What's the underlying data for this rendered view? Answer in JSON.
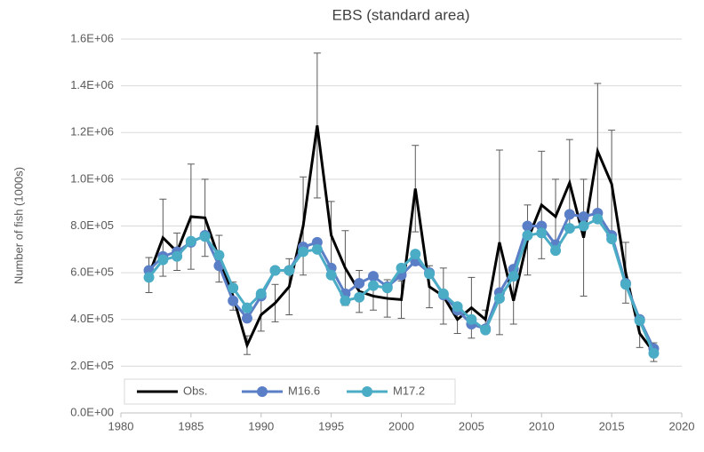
{
  "chart_data": {
    "type": "line",
    "title": "EBS (standard area)",
    "y_label": "Number of fish (1000s)",
    "x": [
      1982,
      1983,
      1984,
      1985,
      1986,
      1987,
      1988,
      1989,
      1990,
      1991,
      1992,
      1993,
      1994,
      1995,
      1996,
      1997,
      1998,
      1999,
      2000,
      2001,
      2002,
      2003,
      2004,
      2005,
      2006,
      2007,
      2008,
      2009,
      2010,
      2011,
      2012,
      2013,
      2014,
      2015,
      2016,
      2017,
      2018
    ],
    "series": [
      {
        "name": "Obs.",
        "color": "#000000",
        "markers": false,
        "values": [
          590000,
          750000,
          690000,
          840000,
          835000,
          660000,
          500000,
          290000,
          420000,
          470000,
          540000,
          800000,
          1230000,
          760000,
          620000,
          520000,
          500000,
          490000,
          485000,
          960000,
          540000,
          500000,
          400000,
          450000,
          400000,
          730000,
          480000,
          740000,
          890000,
          840000,
          985000,
          750000,
          1120000,
          980000,
          600000,
          340000,
          260000
        ],
        "errors": [
          75000,
          165000,
          80000,
          225000,
          165000,
          100000,
          60000,
          40000,
          70000,
          80000,
          120000,
          210000,
          310000,
          145000,
          160000,
          90000,
          60000,
          80000,
          80000,
          185000,
          90000,
          120000,
          60000,
          130000,
          40000,
          395000,
          100000,
          150000,
          230000,
          160000,
          185000,
          250000,
          290000,
          230000,
          130000,
          60000,
          40000
        ]
      },
      {
        "name": "M16.6",
        "color": "#5b7fc7",
        "markers": true,
        "values": [
          610000,
          670000,
          690000,
          730000,
          760000,
          630000,
          480000,
          405000,
          500000,
          610000,
          610000,
          710000,
          730000,
          620000,
          510000,
          555000,
          585000,
          540000,
          590000,
          650000,
          600000,
          505000,
          440000,
          380000,
          360000,
          515000,
          615000,
          800000,
          800000,
          720000,
          850000,
          840000,
          855000,
          760000,
          555000,
          400000,
          275000
        ]
      },
      {
        "name": "M17.2",
        "color": "#4bacc6",
        "markers": true,
        "values": [
          580000,
          655000,
          670000,
          735000,
          755000,
          675000,
          535000,
          450000,
          510000,
          610000,
          610000,
          690000,
          700000,
          590000,
          480000,
          495000,
          545000,
          535000,
          620000,
          680000,
          595000,
          510000,
          455000,
          400000,
          355000,
          490000,
          585000,
          760000,
          770000,
          695000,
          790000,
          800000,
          830000,
          745000,
          550000,
          395000,
          255000
        ]
      }
    ],
    "xlim": [
      1980,
      2020
    ],
    "xticks": [
      1980,
      1985,
      1990,
      1995,
      2000,
      2005,
      2010,
      2015,
      2020
    ],
    "ylim": [
      0,
      1600000
    ],
    "yticks": [
      {
        "value": 0,
        "label": "0.0E+00"
      },
      {
        "value": 200000,
        "label": "2.0E+05"
      },
      {
        "value": 400000,
        "label": "4.0E+05"
      },
      {
        "value": 600000,
        "label": "6.0E+05"
      },
      {
        "value": 800000,
        "label": "8.0E+05"
      },
      {
        "value": 1000000,
        "label": "1.0E+06"
      },
      {
        "value": 1200000,
        "label": "1.2E+06"
      },
      {
        "value": 1400000,
        "label": "1.4E+06"
      },
      {
        "value": 1600000,
        "label": "1.6E+06"
      }
    ],
    "grid": true,
    "legend": "lower-left"
  }
}
